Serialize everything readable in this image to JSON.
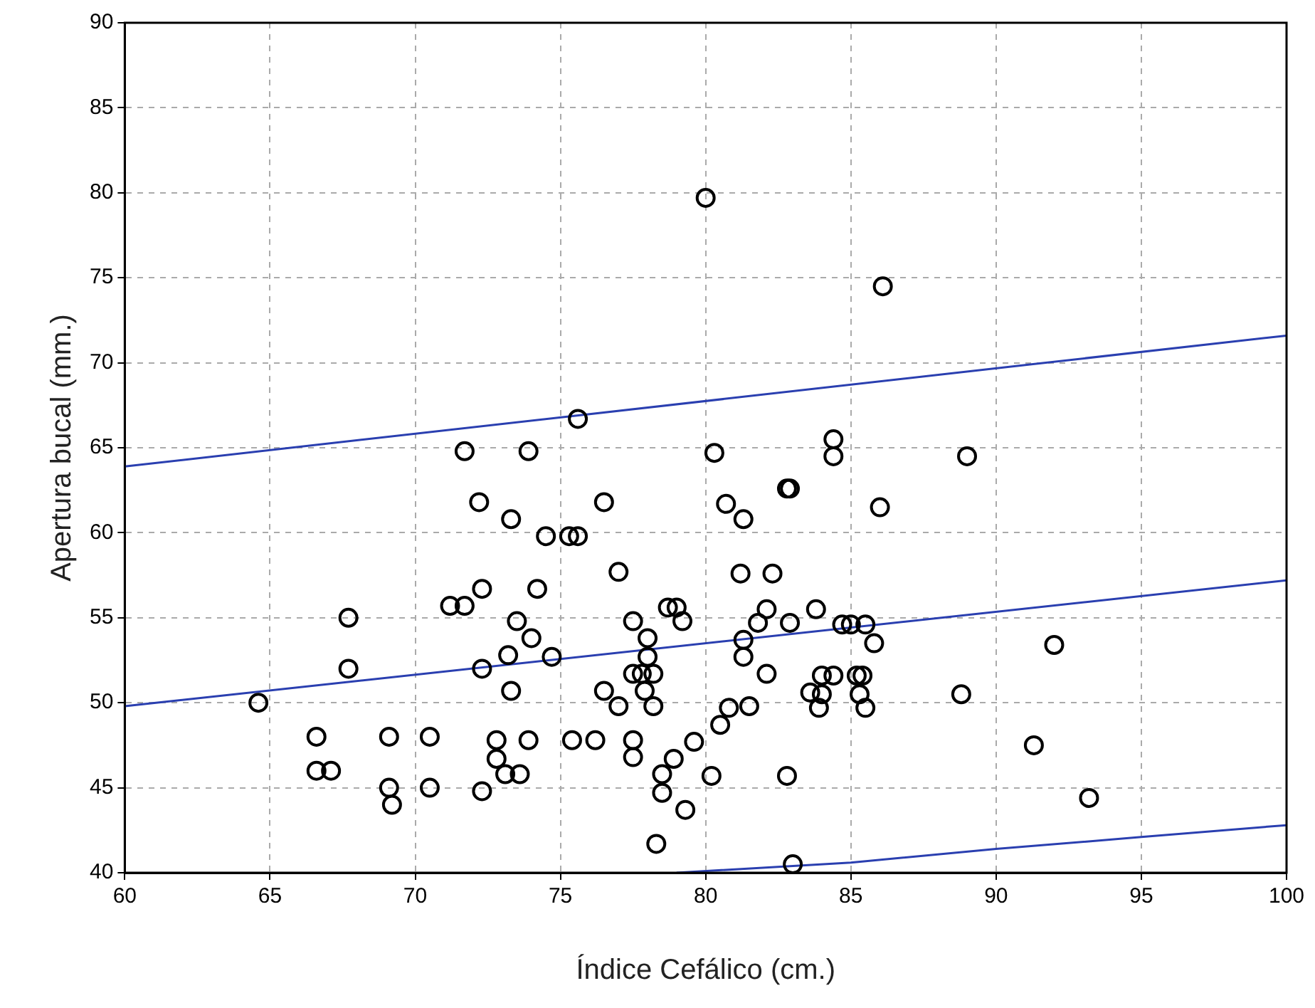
{
  "chart_data": {
    "type": "scatter",
    "xlabel": "Índice Cefálico (cm.)",
    "ylabel": "Apertura bucal (mm.)",
    "xlim": [
      60,
      100
    ],
    "xticks": [
      60,
      65,
      70,
      75,
      80,
      85,
      90,
      95,
      100
    ],
    "ylim": [
      40,
      90
    ],
    "yticks": [
      40,
      45,
      50,
      55,
      60,
      65,
      70,
      75,
      80,
      85,
      90
    ],
    "grid": true,
    "legend": false,
    "series": [
      {
        "marker": "circle",
        "color": "#000000",
        "x": [
          64.6,
          66.6,
          66.6,
          67.1,
          67.7,
          67.7,
          69.1,
          69.1,
          69.2,
          70.5,
          70.5,
          71.2,
          71.7,
          71.7,
          72.2,
          72.3,
          72.3,
          72.3,
          72.8,
          72.8,
          73.1,
          73.2,
          73.3,
          73.3,
          73.5,
          73.6,
          73.9,
          73.9,
          74,
          74.2,
          74.5,
          74.7,
          75.3,
          75.4,
          75.6,
          75.6,
          76.2,
          76.5,
          76.5,
          77,
          77,
          77.5,
          77.5,
          77.5,
          77.5,
          77.8,
          77.9,
          78,
          78,
          78.2,
          78.2,
          78.3,
          78.5,
          78.5,
          78.7,
          79,
          79.2,
          78.9,
          79.3,
          79.6,
          80,
          80.2,
          80.3,
          80.5,
          80.7,
          80.8,
          81.2,
          81.3,
          81.3,
          81.3,
          81.5,
          81.8,
          82.1,
          82.1,
          82.3,
          82.8,
          82.9,
          82.8,
          82.9,
          83,
          83.6,
          83.8,
          83.9,
          84,
          84,
          84.4,
          84.4,
          84.4,
          84.7,
          85,
          85.2,
          85.4,
          85.3,
          85.5,
          85.5,
          85.8,
          86,
          86.1,
          88.8,
          89,
          91.3,
          92,
          93.2
        ],
        "values": [
          50,
          48,
          46,
          46,
          55,
          52,
          48,
          45,
          44,
          48,
          45,
          55.7,
          55.7,
          64.8,
          61.8,
          56.7,
          52,
          44.8,
          47.8,
          46.7,
          45.8,
          52.8,
          50.7,
          60.8,
          54.8,
          45.8,
          47.8,
          64.8,
          53.8,
          56.7,
          59.8,
          52.7,
          59.8,
          47.8,
          59.8,
          66.7,
          47.8,
          61.8,
          50.7,
          57.7,
          49.8,
          54.8,
          51.7,
          47.8,
          46.8,
          51.7,
          50.7,
          52.7,
          53.8,
          51.7,
          49.8,
          41.7,
          45.8,
          44.7,
          55.6,
          55.6,
          54.8,
          46.7,
          43.7,
          47.7,
          79.7,
          45.7,
          64.7,
          48.7,
          61.7,
          49.7,
          57.6,
          60.8,
          53.7,
          52.7,
          49.8,
          54.7,
          55.5,
          51.7,
          57.6,
          62.6,
          62.6,
          45.7,
          54.7,
          40.5,
          50.6,
          55.5,
          49.7,
          51.6,
          50.5,
          51.6,
          65.5,
          64.5,
          54.6,
          54.6,
          51.6,
          51.6,
          50.5,
          49.7,
          54.6,
          53.5,
          61.5,
          74.5,
          50.5,
          64.5,
          47.5,
          53.4,
          44.4
        ]
      },
      {
        "type": "line",
        "color": "#2a3fb0",
        "x": [
          60,
          100
        ],
        "values": [
          63.9,
          71.6
        ]
      },
      {
        "type": "line",
        "color": "#2a3fb0",
        "x": [
          60,
          100
        ],
        "values": [
          49.8,
          57.2
        ]
      },
      {
        "type": "line",
        "color": "#2a3fb0",
        "x": [
          79,
          85,
          90,
          95,
          100
        ],
        "values": [
          40,
          40.6,
          41.4,
          42.1,
          42.8
        ]
      }
    ]
  }
}
